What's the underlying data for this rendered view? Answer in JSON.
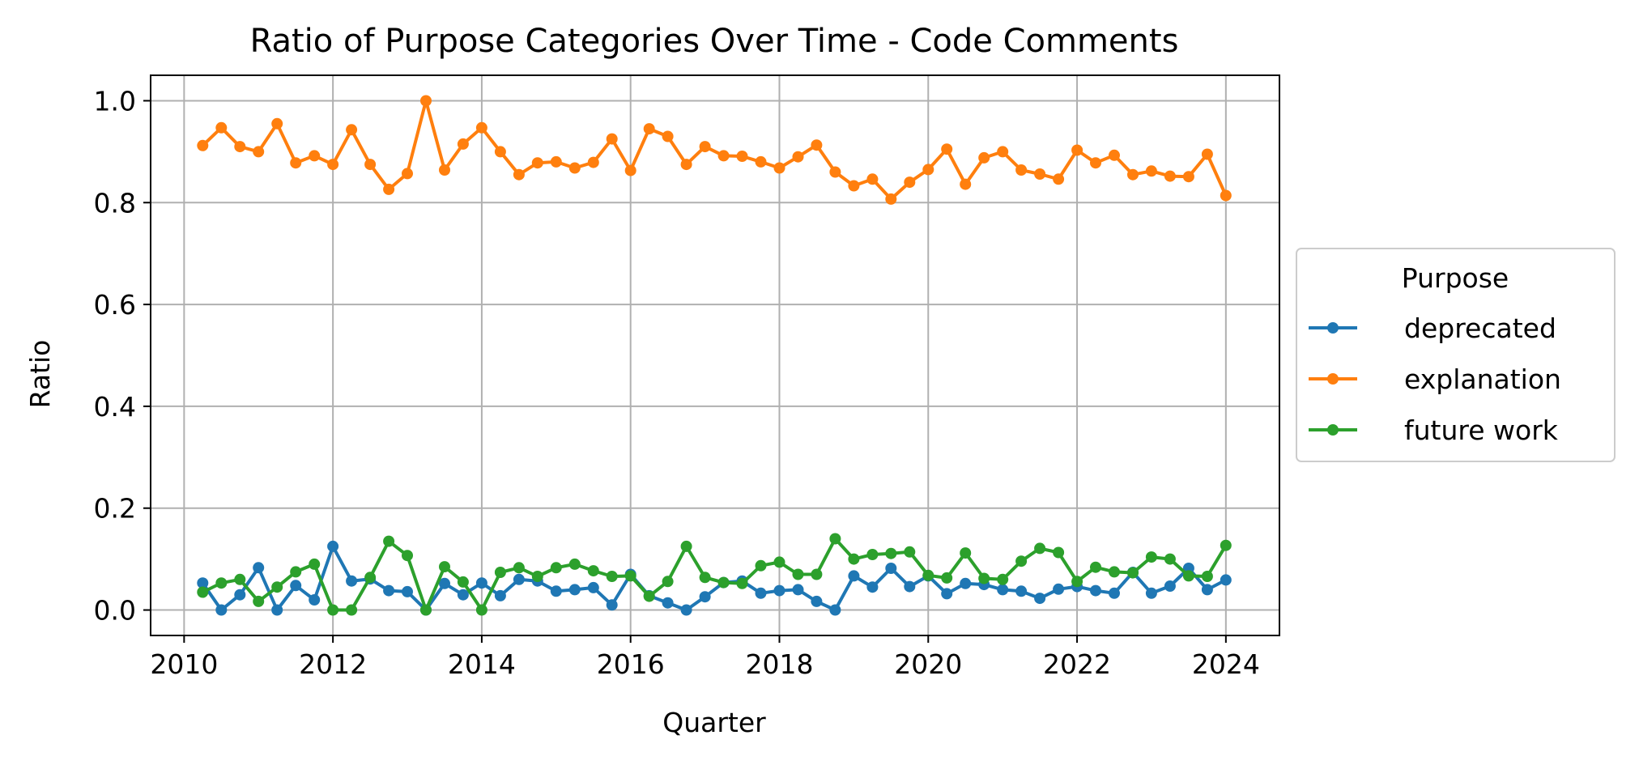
{
  "chart_data": {
    "type": "line",
    "title": "Ratio of Purpose Categories Over Time - Code Comments",
    "xlabel": "Quarter",
    "ylabel": "Ratio",
    "xlim": [
      2009.55,
      2024.72
    ],
    "ylim": [
      -0.05,
      1.05
    ],
    "xticks": [
      2010,
      2012,
      2014,
      2016,
      2018,
      2020,
      2022,
      2024
    ],
    "xtick_labels": [
      "2010",
      "2012",
      "2014",
      "2016",
      "2018",
      "2020",
      "2022",
      "2024"
    ],
    "yticks": [
      0.0,
      0.2,
      0.4,
      0.6,
      0.8,
      1.0
    ],
    "ytick_labels": [
      "0.0",
      "0.2",
      "0.4",
      "0.6",
      "0.8",
      "1.0"
    ],
    "grid": true,
    "legend": {
      "title": "Purpose",
      "placement": "outside-right"
    },
    "x_start": 2010.25,
    "x_step": 0.25,
    "series": [
      {
        "name": "deprecated",
        "color": "#1f77b4",
        "values": [
          0.053,
          0.0,
          0.03,
          0.083,
          0.0,
          0.048,
          0.02,
          0.125,
          0.057,
          0.061,
          0.038,
          0.036,
          0.0,
          0.052,
          0.03,
          0.053,
          0.028,
          0.06,
          0.057,
          0.037,
          0.04,
          0.044,
          0.01,
          0.07,
          0.028,
          0.014,
          0.0,
          0.026,
          0.054,
          0.057,
          0.033,
          0.038,
          0.04,
          0.017,
          0.0,
          0.067,
          0.045,
          0.082,
          0.046,
          0.067,
          0.032,
          0.052,
          0.05,
          0.04,
          0.037,
          0.023,
          0.041,
          0.046,
          0.038,
          0.033,
          0.074,
          0.033,
          0.047,
          0.082,
          0.04,
          0.059
        ]
      },
      {
        "name": "explanation",
        "color": "#ff7f0e",
        "values": [
          0.912,
          0.947,
          0.91,
          0.9,
          0.955,
          0.878,
          0.892,
          0.875,
          0.943,
          0.875,
          0.826,
          0.857,
          1.0,
          0.864,
          0.915,
          0.947,
          0.9,
          0.855,
          0.878,
          0.88,
          0.868,
          0.879,
          0.925,
          0.863,
          0.945,
          0.93,
          0.875,
          0.91,
          0.892,
          0.891,
          0.88,
          0.868,
          0.89,
          0.913,
          0.86,
          0.833,
          0.846,
          0.807,
          0.84,
          0.865,
          0.905,
          0.836,
          0.888,
          0.9,
          0.864,
          0.856,
          0.846,
          0.903,
          0.878,
          0.893,
          0.855,
          0.862,
          0.852,
          0.851,
          0.895,
          0.814
        ]
      },
      {
        "name": "future work",
        "color": "#2ca02c",
        "values": [
          0.035,
          0.053,
          0.06,
          0.017,
          0.045,
          0.075,
          0.09,
          0.0,
          0.0,
          0.064,
          0.135,
          0.107,
          0.0,
          0.085,
          0.055,
          0.0,
          0.074,
          0.083,
          0.066,
          0.083,
          0.09,
          0.077,
          0.066,
          0.067,
          0.027,
          0.056,
          0.125,
          0.064,
          0.054,
          0.052,
          0.087,
          0.094,
          0.07,
          0.07,
          0.14,
          0.1,
          0.109,
          0.111,
          0.114,
          0.068,
          0.063,
          0.112,
          0.062,
          0.06,
          0.096,
          0.121,
          0.113,
          0.056,
          0.084,
          0.075,
          0.073,
          0.104,
          0.1,
          0.067,
          0.066,
          0.127
        ]
      }
    ]
  }
}
